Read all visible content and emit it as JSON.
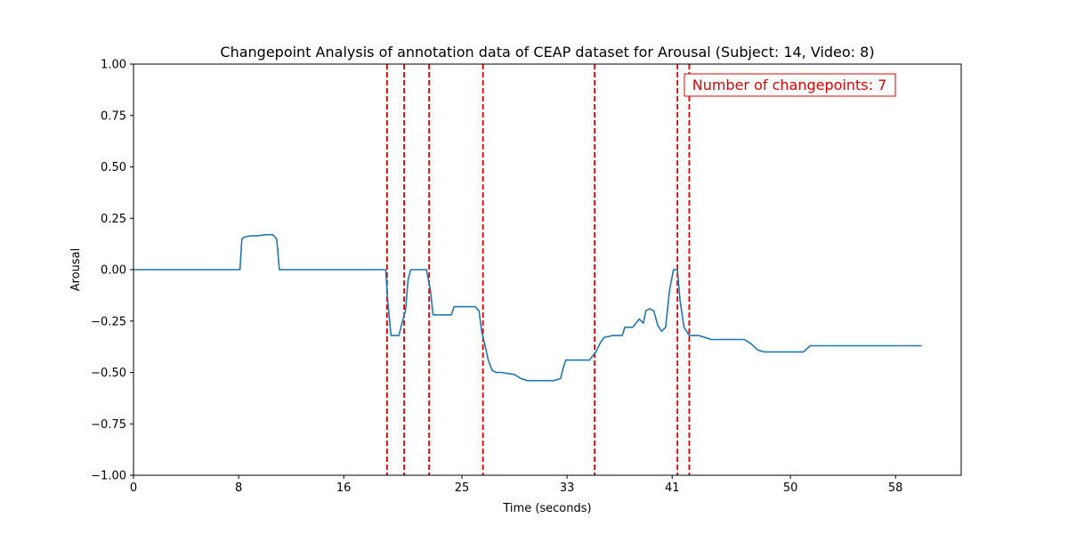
{
  "chart_data": {
    "type": "line",
    "title": "Changepoint Analysis of annotation data of CEAP dataset for Arousal (Subject: 14, Video: 8)",
    "xlabel": "Time (seconds)",
    "ylabel": "Arousal",
    "xlim": [
      0,
      63
    ],
    "ylim": [
      -1.0,
      1.0
    ],
    "x_ticks": [
      0,
      8,
      16,
      25,
      33,
      41,
      50,
      58
    ],
    "y_ticks": [
      -1.0,
      -0.75,
      -0.5,
      -0.25,
      0.0,
      0.25,
      0.5,
      0.75,
      1.0
    ],
    "y_tick_labels": [
      "−1.00",
      "−0.75",
      "−0.50",
      "−0.25",
      "0.00",
      "0.25",
      "0.50",
      "0.75",
      "1.00"
    ],
    "grid": false,
    "series": [
      {
        "color": "#1f77b4",
        "x": [
          0,
          8.1,
          8.25,
          8.5,
          9.0,
          9.5,
          10.0,
          10.6,
          10.9,
          11.1,
          12,
          15,
          19.2,
          19.35,
          19.6,
          20.2,
          20.4,
          20.7,
          20.9,
          21.1,
          21.5,
          22.3,
          22.6,
          22.8,
          23.5,
          24.2,
          24.4,
          26.0,
          26.3,
          26.5,
          26.8,
          27.0,
          27.3,
          27.6,
          28.0,
          29.0,
          29.5,
          30.0,
          31.0,
          32.0,
          32.5,
          32.7,
          32.9,
          33.2,
          34.0,
          34.7,
          35.2,
          35.5,
          35.8,
          36.5,
          37.2,
          37.4,
          38.0,
          38.5,
          38.8,
          39.0,
          39.3,
          39.6,
          39.9,
          40.2,
          40.5,
          40.8,
          41.1,
          41.4,
          41.6,
          41.9,
          42.1,
          42.3,
          43.0,
          43.5,
          44.0,
          46.5,
          47.0,
          47.5,
          48.0,
          50.0,
          51.0,
          51.5,
          52.0,
          55.0,
          60.0
        ],
        "y": [
          0.0,
          0.0,
          0.15,
          0.16,
          0.165,
          0.165,
          0.17,
          0.17,
          0.15,
          0.0,
          0.0,
          0.0,
          0.0,
          -0.15,
          -0.32,
          -0.32,
          -0.27,
          -0.2,
          -0.05,
          0.0,
          0.0,
          0.0,
          -0.1,
          -0.22,
          -0.22,
          -0.22,
          -0.18,
          -0.18,
          -0.2,
          -0.3,
          -0.38,
          -0.44,
          -0.49,
          -0.5,
          -0.5,
          -0.51,
          -0.53,
          -0.54,
          -0.54,
          -0.54,
          -0.53,
          -0.48,
          -0.44,
          -0.44,
          -0.44,
          -0.44,
          -0.4,
          -0.36,
          -0.33,
          -0.32,
          -0.32,
          -0.28,
          -0.28,
          -0.24,
          -0.26,
          -0.2,
          -0.19,
          -0.2,
          -0.27,
          -0.3,
          -0.28,
          -0.1,
          0.0,
          0.0,
          -0.15,
          -0.28,
          -0.3,
          -0.32,
          -0.32,
          -0.33,
          -0.34,
          -0.34,
          -0.36,
          -0.39,
          -0.4,
          -0.4,
          -0.4,
          -0.37,
          -0.37,
          -0.37,
          -0.37
        ]
      }
    ],
    "changepoints": {
      "color": "#e00000",
      "x": [
        19.3,
        20.6,
        22.5,
        26.6,
        35.1,
        41.4,
        42.3
      ]
    },
    "annotation": {
      "text": "Number of changepoints: 7",
      "position": "top-right"
    }
  }
}
